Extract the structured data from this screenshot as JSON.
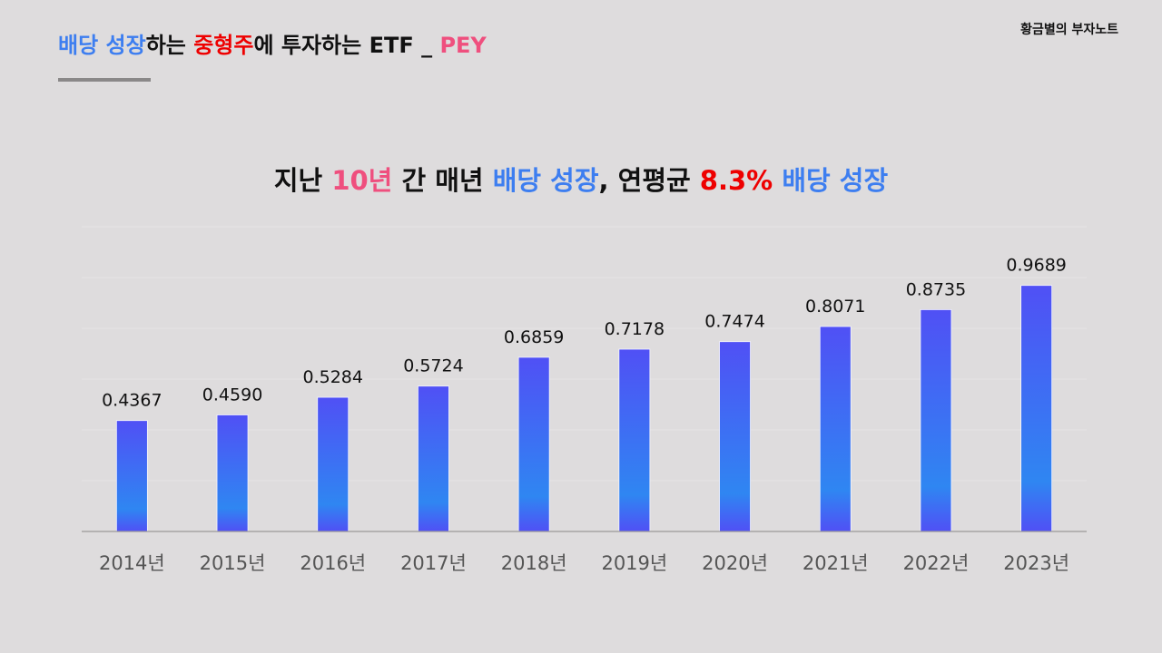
{
  "header": {
    "segments": [
      {
        "text": "배당 성장",
        "color": "#3d7ef0"
      },
      {
        "text": "하는 ",
        "color": "#111111"
      },
      {
        "text": "중형주",
        "color": "#ee0000"
      },
      {
        "text": "에 투자하는 ETF _ ",
        "color": "#111111"
      },
      {
        "text": "PEY",
        "color": "#ef4f7e"
      }
    ]
  },
  "brand": "황금별의 부자노트",
  "chart_data": {
    "type": "bar",
    "title_segments": [
      {
        "text": "지난 ",
        "color": "#111111"
      },
      {
        "text": "10년",
        "color": "#ef4f7e"
      },
      {
        "text": " 간 매년 ",
        "color": "#111111"
      },
      {
        "text": "배당 성장",
        "color": "#3d7ef0"
      },
      {
        "text": ", 연평균 ",
        "color": "#111111"
      },
      {
        "text": "8.3%",
        "color": "#ee0000"
      },
      {
        "text": " 배당 성장",
        "color": "#3d7ef0"
      }
    ],
    "categories": [
      "2014년",
      "2015년",
      "2016년",
      "2017년",
      "2018년",
      "2019년",
      "2020년",
      "2021년",
      "2022년",
      "2023년"
    ],
    "values": [
      0.4367,
      0.459,
      0.5284,
      0.5724,
      0.6859,
      0.7178,
      0.7474,
      0.8071,
      0.8735,
      0.9689
    ],
    "value_labels": [
      "0.4367",
      "0.4590",
      "0.5284",
      "0.5724",
      "0.6859",
      "0.7178",
      "0.7474",
      "0.8071",
      "0.8735",
      "0.9689"
    ],
    "xlabel": "",
    "ylabel": "",
    "ylim": [
      0,
      1.2
    ],
    "grid_step": 0.2,
    "grid": true,
    "bar_colors": {
      "top": "#5050f5",
      "mid": "#2f86f2",
      "bottom": "#5050f5"
    }
  }
}
